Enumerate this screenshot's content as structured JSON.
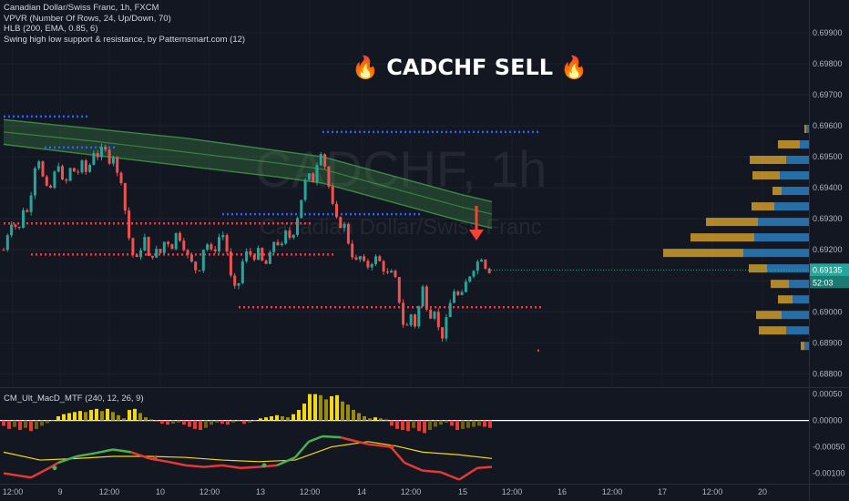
{
  "header": {
    "symbol_line": "Canadian Dollar/Swiss Franc, 1h, FXCM",
    "indicators": [
      "VPVR (Number Of Rows, 24, Up/Down, 70)",
      "HLB (200, EMA, 0.85, 6)",
      "Swing high low support & resistance, by Patternsmart.com (12)"
    ]
  },
  "annotation": {
    "text": "🔥 CADCHF SELL 🔥"
  },
  "watermark": {
    "symbol": "CADCHF, 1h",
    "name": "Canadian Dollar/Swiss Franc"
  },
  "macd_panel": {
    "label": "CM_Ult_MacD_MTF (240, 12, 26, 9)"
  },
  "colors": {
    "background": "#131722",
    "bull": "#26a69a",
    "bear": "#ef5350",
    "resistance": "#2962ff",
    "support": "#f23645",
    "hlb_band": "#4caf50",
    "vp_up": "#2d84c9",
    "vp_down": "#d9a42c",
    "macd_up": "#4caf50",
    "macd_down": "#e53935",
    "signal": "#f5d90a",
    "arrow": "#f44336"
  },
  "chart_data": [
    {
      "type": "candlestick",
      "title": "Canadian Dollar/Swiss Franc, 1h, FXCM",
      "y_axis_ticks": [
        "0.69900",
        "0.69800",
        "0.69700",
        "0.69600",
        "0.69500",
        "0.69400",
        "0.69300",
        "0.69200",
        "0.69100",
        "0.69000",
        "0.68900",
        "0.68800"
      ],
      "ylim": [
        0.6876,
        0.69988
      ],
      "x_axis_ticks": [
        "12:00",
        "9",
        "12:00",
        "10",
        "12:00",
        "13",
        "12:00",
        "14",
        "12:00",
        "15",
        "12:00",
        "16",
        "12:00",
        "17",
        "12:00",
        "20"
      ],
      "last_price": "0.69135",
      "countdown": "52:03",
      "close_path": [
        [
          0,
          0.692
        ],
        [
          5,
          0.6926
        ],
        [
          10,
          0.693
        ],
        [
          16,
          0.6925
        ],
        [
          22,
          0.6934
        ],
        [
          28,
          0.6931
        ],
        [
          32,
          0.6945
        ],
        [
          38,
          0.695
        ],
        [
          44,
          0.6942
        ],
        [
          50,
          0.6938
        ],
        [
          55,
          0.6944
        ],
        [
          60,
          0.6948
        ],
        [
          66,
          0.694
        ],
        [
          70,
          0.6943
        ],
        [
          74,
          0.6947
        ],
        [
          80,
          0.6944
        ],
        [
          86,
          0.6948
        ],
        [
          92,
          0.6944
        ],
        [
          98,
          0.6952
        ],
        [
          104,
          0.695
        ],
        [
          110,
          0.6954
        ],
        [
          115,
          0.6948
        ],
        [
          120,
          0.6951
        ],
        [
          125,
          0.6944
        ],
        [
          130,
          0.6942
        ],
        [
          135,
          0.6928
        ],
        [
          140,
          0.692
        ],
        [
          145,
          0.6916
        ],
        [
          150,
          0.692
        ],
        [
          155,
          0.6924
        ],
        [
          160,
          0.6916
        ],
        [
          166,
          0.692
        ],
        [
          172,
          0.6919
        ],
        [
          178,
          0.6924
        ],
        [
          184,
          0.692
        ],
        [
          190,
          0.6926
        ],
        [
          196,
          0.6922
        ],
        [
          202,
          0.6918
        ],
        [
          208,
          0.6915
        ],
        [
          214,
          0.6912
        ],
        [
          218,
          0.692
        ],
        [
          224,
          0.6922
        ],
        [
          230,
          0.6918
        ],
        [
          236,
          0.6924
        ],
        [
          242,
          0.6925
        ],
        [
          246,
          0.6918
        ],
        [
          250,
          0.691
        ],
        [
          256,
          0.6906
        ],
        [
          262,
          0.6916
        ],
        [
          268,
          0.692
        ],
        [
          274,
          0.6917
        ],
        [
          280,
          0.692
        ],
        [
          286,
          0.6914
        ],
        [
          292,
          0.6918
        ],
        [
          298,
          0.6924
        ],
        [
          304,
          0.692
        ],
        [
          310,
          0.6926
        ],
        [
          316,
          0.6923
        ],
        [
          322,
          0.693
        ],
        [
          328,
          0.6938
        ],
        [
          334,
          0.6946
        ],
        [
          338,
          0.694
        ],
        [
          344,
          0.6948
        ],
        [
          348,
          0.6952
        ],
        [
          352,
          0.6948
        ],
        [
          356,
          0.6942
        ],
        [
          360,
          0.6935
        ],
        [
          364,
          0.6932
        ],
        [
          368,
          0.6926
        ],
        [
          372,
          0.693
        ],
        [
          376,
          0.6926
        ],
        [
          380,
          0.692
        ],
        [
          386,
          0.6916
        ],
        [
          392,
          0.6918
        ],
        [
          398,
          0.6914
        ],
        [
          404,
          0.6916
        ],
        [
          410,
          0.6918
        ],
        [
          416,
          0.6914
        ],
        [
          422,
          0.6912
        ],
        [
          428,
          0.6913
        ],
        [
          432,
          0.6908
        ],
        [
          436,
          0.69
        ],
        [
          440,
          0.6894
        ],
        [
          444,
          0.6896
        ],
        [
          448,
          0.69
        ],
        [
          452,
          0.6895
        ],
        [
          456,
          0.6902
        ],
        [
          460,
          0.6908
        ],
        [
          464,
          0.6902
        ],
        [
          468,
          0.6898
        ],
        [
          472,
          0.6902
        ],
        [
          476,
          0.6897
        ],
        [
          480,
          0.689
        ],
        [
          484,
          0.6895
        ],
        [
          488,
          0.69
        ],
        [
          492,
          0.6905
        ],
        [
          496,
          0.6908
        ],
        [
          500,
          0.6904
        ],
        [
          504,
          0.6906
        ],
        [
          508,
          0.691
        ],
        [
          512,
          0.6912
        ],
        [
          516,
          0.6914
        ],
        [
          520,
          0.6916
        ],
        [
          524,
          0.6918
        ],
        [
          528,
          0.6915
        ],
        [
          532,
          0.6913
        ],
        [
          536,
          0.69135
        ]
      ],
      "hlb_band": {
        "upper": [
          [
            0,
            0.6962
          ],
          [
            100,
            0.6959
          ],
          [
            200,
            0.6956
          ],
          [
            300,
            0.6952
          ],
          [
            350,
            0.695
          ],
          [
            400,
            0.6946
          ],
          [
            450,
            0.6942
          ],
          [
            500,
            0.6938
          ],
          [
            536,
            0.69355
          ]
        ],
        "middle": [
          [
            0,
            0.6958
          ],
          [
            100,
            0.6955
          ],
          [
            200,
            0.69515
          ],
          [
            300,
            0.6948
          ],
          [
            350,
            0.6946
          ],
          [
            400,
            0.6942
          ],
          [
            450,
            0.6938
          ],
          [
            500,
            0.6934
          ],
          [
            536,
            0.69315
          ]
        ],
        "lower": [
          [
            0,
            0.6954
          ],
          [
            100,
            0.69505
          ],
          [
            200,
            0.6947
          ],
          [
            300,
            0.69435
          ],
          [
            350,
            0.69415
          ],
          [
            400,
            0.69375
          ],
          [
            450,
            0.69335
          ],
          [
            500,
            0.69295
          ],
          [
            536,
            0.6927
          ]
        ]
      },
      "levels": [
        {
          "kind": "resistance",
          "price": 0.6963,
          "from": 0,
          "to": 95
        },
        {
          "kind": "resistance",
          "price": 0.6953,
          "from": 45,
          "to": 125
        },
        {
          "kind": "resistance",
          "price": 0.6958,
          "from": 350,
          "to": 590
        },
        {
          "kind": "resistance",
          "price": 0.69315,
          "from": 240,
          "to": 460
        },
        {
          "kind": "support",
          "price": 0.69285,
          "from": 0,
          "to": 340
        },
        {
          "kind": "support",
          "price": 0.69185,
          "from": 30,
          "to": 365
        },
        {
          "kind": "support",
          "price": 0.69015,
          "from": 258,
          "to": 590
        },
        {
          "kind": "support",
          "price": 0.68875,
          "from": 586,
          "to": 590
        }
      ],
      "volume_profile": [
        {
          "price": 0.6959,
          "up": 3,
          "down": 2
        },
        {
          "price": 0.6954,
          "up": 10,
          "down": 24
        },
        {
          "price": 0.6949,
          "up": 25,
          "down": 40
        },
        {
          "price": 0.6944,
          "up": 32,
          "down": 30
        },
        {
          "price": 0.6939,
          "up": 30,
          "down": 10
        },
        {
          "price": 0.6934,
          "up": 38,
          "down": 25
        },
        {
          "price": 0.6929,
          "up": 56,
          "down": 57
        },
        {
          "price": 0.6924,
          "up": 60,
          "down": 70
        },
        {
          "price": 0.6919,
          "up": 72,
          "down": 88
        },
        {
          "price": 0.6914,
          "up": 46,
          "down": 20
        },
        {
          "price": 0.6909,
          "up": 22,
          "down": 20
        },
        {
          "price": 0.6904,
          "up": 18,
          "down": 16
        },
        {
          "price": 0.6899,
          "up": 30,
          "down": 28
        },
        {
          "price": 0.6894,
          "up": 25,
          "down": 30
        },
        {
          "price": 0.6889,
          "up": 5,
          "down": 4
        }
      ]
    },
    {
      "type": "macd",
      "title": "CM_Ult_MacD_MTF (240, 12, 26, 9)",
      "y_axis_ticks": [
        "0.00050",
        "0.00000",
        "-0.00050",
        "-0.00100"
      ],
      "ylim": [
        -0.00118,
        0.00058
      ],
      "histogram": [
        [
          0,
          -0.0001
        ],
        [
          6,
          -0.00016
        ],
        [
          12,
          -0.00012
        ],
        [
          18,
          -0.00018
        ],
        [
          24,
          -0.00014
        ],
        [
          30,
          -0.0002
        ],
        [
          36,
          -0.00016
        ],
        [
          42,
          -0.0001
        ],
        [
          48,
          -5e-05
        ],
        [
          54,
          -2e-05
        ],
        [
          60,
          8e-05
        ],
        [
          66,
          0.00012
        ],
        [
          72,
          0.00014
        ],
        [
          78,
          0.00016
        ],
        [
          84,
          0.00018
        ],
        [
          90,
          0.00016
        ],
        [
          96,
          0.0002
        ],
        [
          102,
          0.00022
        ],
        [
          108,
          0.00018
        ],
        [
          114,
          0.00022
        ],
        [
          120,
          0.00016
        ],
        [
          126,
          0.0001
        ],
        [
          132,
          4e-05
        ],
        [
          138,
          0.0002
        ],
        [
          144,
          0.00022
        ],
        [
          150,
          0.00014
        ],
        [
          156,
          6e-05
        ],
        [
          162,
          2e-05
        ],
        [
          168,
          -2e-05
        ],
        [
          174,
          -6e-05
        ],
        [
          180,
          -8e-05
        ],
        [
          186,
          -6e-05
        ],
        [
          192,
          -4e-05
        ],
        [
          198,
          -8e-05
        ],
        [
          204,
          -0.00012
        ],
        [
          210,
          -0.00016
        ],
        [
          216,
          -0.00018
        ],
        [
          222,
          -0.00014
        ],
        [
          228,
          -8e-05
        ],
        [
          234,
          -4e-05
        ],
        [
          240,
          -6e-05
        ],
        [
          246,
          -8e-05
        ],
        [
          252,
          -4e-05
        ],
        [
          258,
          -2e-05
        ],
        [
          264,
          -6e-05
        ],
        [
          270,
          -4e-05
        ],
        [
          276,
          -2e-05
        ],
        [
          282,
          4e-05
        ],
        [
          288,
          6e-05
        ],
        [
          294,
          8e-05
        ],
        [
          300,
          0.0001
        ],
        [
          306,
          8e-05
        ],
        [
          312,
          6e-05
        ],
        [
          318,
          0.00012
        ],
        [
          324,
          0.0002
        ],
        [
          330,
          0.00032
        ],
        [
          336,
          0.0005
        ],
        [
          342,
          0.0005
        ],
        [
          348,
          0.00048
        ],
        [
          354,
          0.0004
        ],
        [
          360,
          0.00046
        ],
        [
          366,
          0.00048
        ],
        [
          372,
          0.00036
        ],
        [
          378,
          0.0003
        ],
        [
          384,
          0.0002
        ],
        [
          390,
          0.00014
        ],
        [
          396,
          8e-05
        ],
        [
          402,
          4e-05
        ],
        [
          408,
          6e-05
        ],
        [
          414,
          4e-05
        ],
        [
          420,
          2e-05
        ],
        [
          426,
          -0.0001
        ],
        [
          432,
          -0.00016
        ],
        [
          438,
          -0.00018
        ],
        [
          444,
          -0.0002
        ],
        [
          450,
          -0.00014
        ],
        [
          456,
          -0.0002
        ],
        [
          462,
          -0.00024
        ],
        [
          468,
          -0.00018
        ],
        [
          474,
          -0.00012
        ],
        [
          480,
          -8e-05
        ],
        [
          486,
          -4e-05
        ],
        [
          492,
          -0.0001
        ],
        [
          498,
          -0.00018
        ],
        [
          504,
          -0.00016
        ],
        [
          510,
          -0.00014
        ],
        [
          516,
          -0.00012
        ],
        [
          522,
          -0.0001
        ],
        [
          528,
          -0.00012
        ],
        [
          534,
          -0.00014
        ]
      ],
      "macd_line": [
        [
          0,
          -0.001
        ],
        [
          30,
          -0.00108
        ],
        [
          50,
          -0.0009
        ],
        [
          60,
          -0.0008
        ],
        [
          80,
          -0.00068
        ],
        [
          100,
          -0.00062
        ],
        [
          120,
          -0.00055
        ],
        [
          140,
          -0.0006
        ],
        [
          160,
          -0.00072
        ],
        [
          180,
          -0.00078
        ],
        [
          200,
          -0.00085
        ],
        [
          220,
          -0.00088
        ],
        [
          240,
          -0.00085
        ],
        [
          260,
          -0.0009
        ],
        [
          280,
          -0.00088
        ],
        [
          300,
          -0.00085
        ],
        [
          320,
          -0.0007
        ],
        [
          335,
          -0.0004
        ],
        [
          350,
          -0.0003
        ],
        [
          370,
          -0.00032
        ],
        [
          400,
          -0.00045
        ],
        [
          425,
          -0.0005
        ],
        [
          440,
          -0.0008
        ],
        [
          460,
          -0.00095
        ],
        [
          480,
          -0.00098
        ],
        [
          500,
          -0.00112
        ],
        [
          520,
          -0.0009
        ],
        [
          536,
          -0.00088
        ]
      ],
      "signal_line": [
        [
          0,
          -0.0006
        ],
        [
          40,
          -0.00075
        ],
        [
          80,
          -0.00072
        ],
        [
          120,
          -0.00068
        ],
        [
          160,
          -0.00068
        ],
        [
          200,
          -0.0007
        ],
        [
          240,
          -0.00075
        ],
        [
          280,
          -0.00078
        ],
        [
          320,
          -0.00075
        ],
        [
          360,
          -0.0005
        ],
        [
          400,
          -0.0004
        ],
        [
          430,
          -0.00048
        ],
        [
          460,
          -0.0006
        ],
        [
          500,
          -0.00065
        ],
        [
          536,
          -0.00072
        ]
      ],
      "zero_line": 0
    }
  ]
}
